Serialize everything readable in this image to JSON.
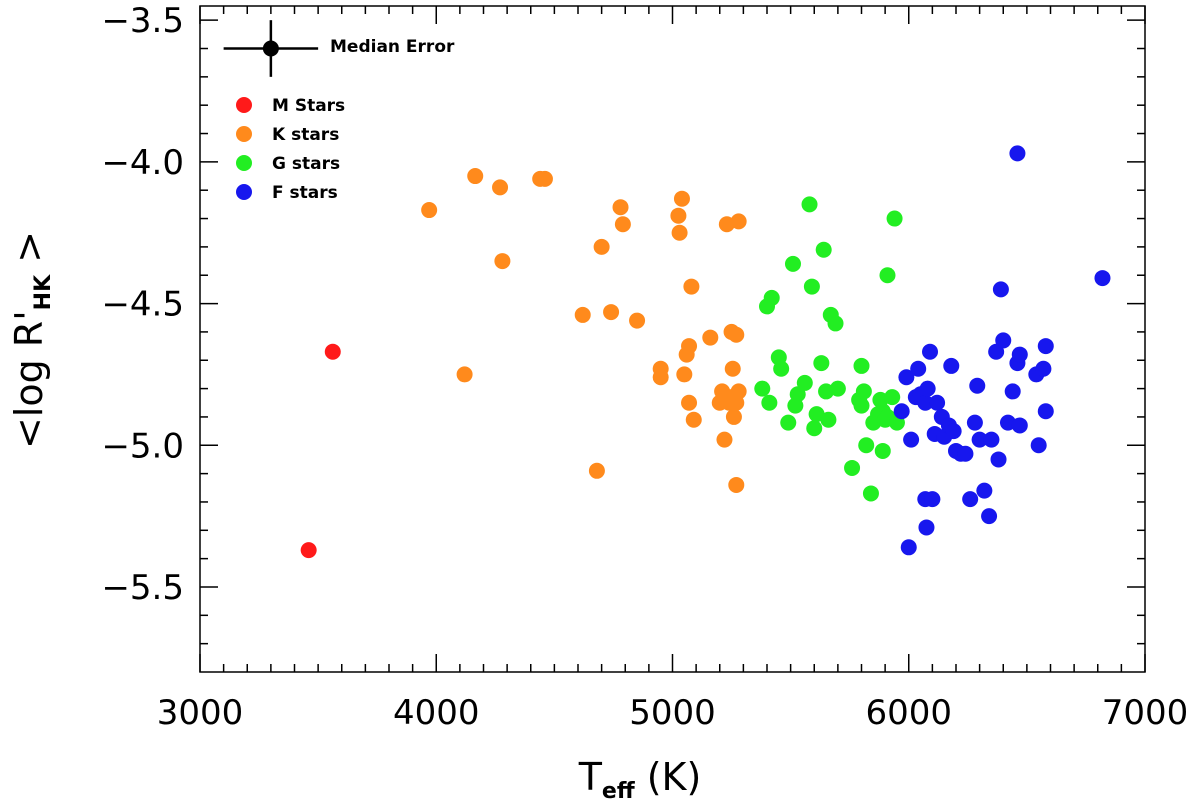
{
  "chart_data": {
    "type": "scatter",
    "title": "",
    "xlabel": {
      "main": "T",
      "sub": "eff",
      "suffix": " (K)"
    },
    "ylabel": {
      "prefix": "<log R'",
      "sub": "HK",
      "suffix": " >"
    },
    "xlim": [
      3000,
      7000
    ],
    "ylim": [
      -5.8,
      -3.45
    ],
    "x_ticks": [
      3000,
      4000,
      5000,
      6000,
      7000
    ],
    "x_tick_labels": [
      "3000",
      "4000",
      "5000",
      "6000",
      "7000"
    ],
    "y_ticks": [
      -5.5,
      -5.0,
      -4.5,
      -4.0,
      -3.5
    ],
    "y_tick_labels": [
      "−5.5",
      "−5.0",
      "−4.5",
      "−4.0",
      "−3.5"
    ],
    "grid": false,
    "legend_position": "top-left",
    "median_error": {
      "label": "Median Error",
      "x": 3300,
      "y": -3.6,
      "xerr": 200,
      "yerr": 0.1,
      "color": "#000000"
    },
    "series": [
      {
        "name": "M Stars",
        "color": "#ff1a1a",
        "points": [
          [
            3562,
            -4.67
          ],
          [
            3460,
            -5.37
          ]
        ]
      },
      {
        "name": "K stars",
        "color": "#ff8a1c",
        "points": [
          [
            3970,
            -4.17
          ],
          [
            4165,
            -4.05
          ],
          [
            4270,
            -4.09
          ],
          [
            4280,
            -4.35
          ],
          [
            4120,
            -4.75
          ],
          [
            4440,
            -4.06
          ],
          [
            4460,
            -4.06
          ],
          [
            4620,
            -4.54
          ],
          [
            4700,
            -4.3
          ],
          [
            4740,
            -4.53
          ],
          [
            4780,
            -4.16
          ],
          [
            4790,
            -4.22
          ],
          [
            4850,
            -4.56
          ],
          [
            4680,
            -5.09
          ],
          [
            4950,
            -4.73
          ],
          [
            4950,
            -4.76
          ],
          [
            5025,
            -4.19
          ],
          [
            5040,
            -4.13
          ],
          [
            5030,
            -4.25
          ],
          [
            5060,
            -4.68
          ],
          [
            5070,
            -4.65
          ],
          [
            5050,
            -4.75
          ],
          [
            5080,
            -4.44
          ],
          [
            5070,
            -4.85
          ],
          [
            5090,
            -4.91
          ],
          [
            5160,
            -4.62
          ],
          [
            5200,
            -4.85
          ],
          [
            5210,
            -4.81
          ],
          [
            5240,
            -4.85
          ],
          [
            5220,
            -4.98
          ],
          [
            5230,
            -4.22
          ],
          [
            5250,
            -4.6
          ],
          [
            5270,
            -4.61
          ],
          [
            5255,
            -4.73
          ],
          [
            5270,
            -4.85
          ],
          [
            5280,
            -4.81
          ],
          [
            5260,
            -4.9
          ],
          [
            5250,
            -4.83
          ],
          [
            5280,
            -4.21
          ],
          [
            5270,
            -5.14
          ]
        ]
      },
      {
        "name": "G stars",
        "color": "#22ee22",
        "points": [
          [
            5380,
            -4.8
          ],
          [
            5400,
            -4.51
          ],
          [
            5420,
            -4.48
          ],
          [
            5410,
            -4.85
          ],
          [
            5450,
            -4.69
          ],
          [
            5460,
            -4.73
          ],
          [
            5490,
            -4.92
          ],
          [
            5510,
            -4.36
          ],
          [
            5520,
            -4.86
          ],
          [
            5530,
            -4.82
          ],
          [
            5560,
            -4.78
          ],
          [
            5580,
            -4.15
          ],
          [
            5590,
            -4.44
          ],
          [
            5600,
            -4.94
          ],
          [
            5610,
            -4.89
          ],
          [
            5630,
            -4.71
          ],
          [
            5640,
            -4.31
          ],
          [
            5650,
            -4.81
          ],
          [
            5660,
            -4.91
          ],
          [
            5670,
            -4.54
          ],
          [
            5690,
            -4.57
          ],
          [
            5700,
            -4.8
          ],
          [
            5760,
            -5.08
          ],
          [
            5790,
            -4.84
          ],
          [
            5800,
            -4.86
          ],
          [
            5800,
            -4.72
          ],
          [
            5810,
            -4.81
          ],
          [
            5820,
            -5.0
          ],
          [
            5840,
            -5.17
          ],
          [
            5850,
            -4.92
          ],
          [
            5870,
            -4.89
          ],
          [
            5880,
            -4.84
          ],
          [
            5890,
            -4.88
          ],
          [
            5890,
            -5.02
          ],
          [
            5900,
            -4.91
          ],
          [
            5910,
            -4.4
          ],
          [
            5910,
            -4.9
          ],
          [
            5930,
            -4.83
          ],
          [
            5940,
            -4.2
          ],
          [
            5950,
            -4.92
          ]
        ]
      },
      {
        "name": "F stars",
        "color": "#1717ee",
        "points": [
          [
            5970,
            -4.88
          ],
          [
            5990,
            -4.76
          ],
          [
            6000,
            -5.36
          ],
          [
            6010,
            -4.98
          ],
          [
            6030,
            -4.83
          ],
          [
            6040,
            -4.73
          ],
          [
            6050,
            -4.82
          ],
          [
            6070,
            -4.85
          ],
          [
            6070,
            -5.19
          ],
          [
            6075,
            -5.29
          ],
          [
            6080,
            -4.8
          ],
          [
            6090,
            -4.67
          ],
          [
            6100,
            -5.19
          ],
          [
            6110,
            -4.96
          ],
          [
            6120,
            -4.85
          ],
          [
            6140,
            -4.9
          ],
          [
            6150,
            -4.97
          ],
          [
            6170,
            -4.93
          ],
          [
            6180,
            -4.72
          ],
          [
            6190,
            -4.95
          ],
          [
            6200,
            -5.02
          ],
          [
            6220,
            -5.03
          ],
          [
            6240,
            -5.03
          ],
          [
            6260,
            -5.19
          ],
          [
            6280,
            -4.92
          ],
          [
            6290,
            -4.79
          ],
          [
            6300,
            -4.98
          ],
          [
            6320,
            -5.16
          ],
          [
            6340,
            -5.25
          ],
          [
            6350,
            -4.98
          ],
          [
            6370,
            -4.67
          ],
          [
            6380,
            -5.05
          ],
          [
            6390,
            -4.45
          ],
          [
            6400,
            -4.63
          ],
          [
            6420,
            -4.92
          ],
          [
            6440,
            -4.81
          ],
          [
            6460,
            -3.97
          ],
          [
            6460,
            -4.71
          ],
          [
            6470,
            -4.68
          ],
          [
            6470,
            -4.93
          ],
          [
            6540,
            -4.75
          ],
          [
            6550,
            -5.0
          ],
          [
            6570,
            -4.73
          ],
          [
            6580,
            -4.65
          ],
          [
            6580,
            -4.88
          ],
          [
            6820,
            -4.41
          ]
        ]
      }
    ]
  }
}
